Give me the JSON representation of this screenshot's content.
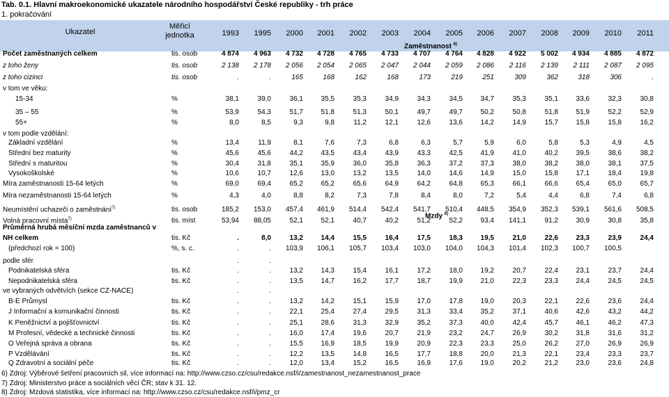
{
  "title": "Tab. 0.1. Hlavní makroekonomické ukazatele národního hospodářství České republiky - trh práce",
  "subtitle": "1. pokračování",
  "header": {
    "indicator": "Ukazatel",
    "unit_line1": "Měřicí",
    "unit_line2": "jednotka",
    "years": [
      "1993",
      "1995",
      "2000",
      "2001",
      "2002",
      "2003",
      "2004",
      "2005",
      "2006",
      "2007",
      "2008",
      "2009",
      "2010",
      "2011"
    ]
  },
  "sections": {
    "employment": "Zaměstnanost",
    "employment_note": "6)",
    "wages": "Mzdy",
    "wages_note": "8)"
  },
  "rows": [
    {
      "label": "Počet zaměstnaných celkem",
      "unit": "tis. osob",
      "style": "bold",
      "values": [
        "4 874",
        "4 963",
        "4 732",
        "4 728",
        "4 765",
        "4 733",
        "4 707",
        "4 764",
        "4 828",
        "4 922",
        "5 002",
        "4 934",
        "4 885",
        "4 872"
      ]
    },
    {
      "label": "z toho ženy",
      "unit": "tis. osob",
      "style": "ital",
      "values": [
        "2 138",
        "2 178",
        "2 056",
        "2 054",
        "2 065",
        "2 047",
        "2 044",
        "2 059",
        "2 086",
        "2 116",
        "2 139",
        "2 111",
        "2 087",
        "2 095"
      ]
    },
    {
      "label": "z toho cizinci",
      "unit": "tis. osob",
      "style": "ital",
      "values": [
        ".",
        ".",
        "165",
        "168",
        "162",
        "168",
        "173",
        "219",
        "251",
        "309",
        "362",
        "318",
        "306",
        "."
      ]
    },
    {
      "label": "v tom ve věku:",
      "unit": "",
      "style": "",
      "values": []
    },
    {
      "label": "15-34",
      "unit": "%",
      "style": "",
      "indent": 2,
      "values": [
        "38,1",
        "39,0",
        "36,1",
        "35,5",
        "35,3",
        "34,9",
        "34,3",
        "34,5",
        "34,7",
        "35,3",
        "35,1",
        "33,6",
        "32,3",
        "30,8"
      ]
    },
    {
      "label": "35 – 55",
      "unit": "%",
      "style": "",
      "indent": 2,
      "values": [
        "53,9",
        "54,3",
        "51,7",
        "51,8",
        "51,3",
        "50,1",
        "49,7",
        "49,7",
        "50,2",
        "50,8",
        "51,8",
        "51,9",
        "52,2",
        "52,9"
      ]
    },
    {
      "label": "55+",
      "unit": "%",
      "style": "",
      "indent": 2,
      "values": [
        "8,0",
        "8,5",
        "9,3",
        "9,8",
        "11,2",
        "12,1",
        "12,6",
        "13,6",
        "14,2",
        "14,9",
        "15,7",
        "15,8",
        "15,8",
        "16,2"
      ]
    },
    {
      "label": "v tom podle vzdělání:",
      "unit": "",
      "style": "",
      "values": []
    },
    {
      "label": "Základní vzdělání",
      "unit": "%",
      "style": "",
      "indent": 1,
      "values": [
        "13,4",
        "11,9",
        "8,1",
        "7,6",
        "7,3",
        "6,8",
        "6,3",
        "5,7",
        "5,9",
        "6,0",
        "5,8",
        "5,3",
        "4,9",
        "4,5"
      ]
    },
    {
      "label": "Střední bez maturity",
      "unit": "%",
      "style": "",
      "indent": 1,
      "values": [
        "45,6",
        "45,6",
        "44,2",
        "43,5",
        "43,4",
        "43,9",
        "43,3",
        "42,5",
        "41,9",
        "41,0",
        "40,2",
        "39,5",
        "38,6",
        "38,2"
      ]
    },
    {
      "label": "Střední s maturitou",
      "unit": "%",
      "style": "",
      "indent": 1,
      "values": [
        "30,4",
        "31,8",
        "35,1",
        "35,9",
        "36,0",
        "35,8",
        "36,3",
        "37,2",
        "37,3",
        "38,0",
        "38,2",
        "38,0",
        "38,1",
        "37,5"
      ]
    },
    {
      "label": "Vysokoškolské",
      "unit": "%",
      "style": "",
      "indent": 1,
      "values": [
        "10,6",
        "10,7",
        "12,6",
        "13,0",
        "13,2",
        "13,5",
        "14,0",
        "14,6",
        "14,9",
        "15,0",
        "15,8",
        "17,1",
        "18,4",
        "19,8"
      ]
    },
    {
      "label": "Míra zaměstnanosti 15-64 letých",
      "unit": "%",
      "style": "",
      "values": [
        "69,0",
        "69,4",
        "65,2",
        "65,2",
        "65,6",
        "64,9",
        "64,2",
        "64,8",
        "65,3",
        "66,1",
        "66,6",
        "65,4",
        "65,0",
        "65,7"
      ]
    },
    {
      "label": "Míra nezaměstnanosti 15-64 letých",
      "unit": "%",
      "style": "",
      "values": [
        "4,3",
        "4,0",
        "8,8",
        "8,2",
        "7,3",
        "7,8",
        "8,4",
        "8,0",
        "7,2",
        "5,4",
        "4,4",
        "6,8",
        "7,4",
        "6,8"
      ]
    },
    {
      "label": "Neumístění uchazeči o zaměstnání",
      "note": "7)",
      "unit": "tis. osob",
      "style": "",
      "values": [
        "185,2",
        "153,0",
        "457,4",
        "461,9",
        "514,4",
        "542,4",
        "541,7",
        "510,4",
        "448,5",
        "354,9",
        "352,3",
        "539,1",
        "561,6",
        "508,5"
      ]
    },
    {
      "label": "Volná pracovní místa",
      "note": "7)",
      "unit": "tis. míst",
      "style": "",
      "values": [
        "53,94",
        "88,05",
        "52,1",
        "52,1",
        "40,7",
        "40,2",
        "51,2",
        "52,2",
        "93,4",
        "141,1",
        "91,2",
        "30,9",
        "30,8",
        "35,8"
      ]
    },
    {
      "label": "Průměrná hrubá měsíční mzda zaměstnanců v",
      "unit": "",
      "style": "bold",
      "values": []
    },
    {
      "label": "NH celkem",
      "unit": "tis. Kč",
      "style": "bold",
      "values": [
        ".",
        "8,0",
        "13,2",
        "14,4",
        "15,5",
        "16,4",
        "17,5",
        "18,3",
        "19,5",
        "21,0",
        "22,6",
        "23,3",
        "23,9",
        "24,4"
      ]
    },
    {
      "label": "(předchozí rok = 100)",
      "unit": "%, s. c.",
      "style": "",
      "indent": 1,
      "values": [
        ".",
        ".",
        "103,9",
        "106,1",
        "105,7",
        "103,4",
        "103,0",
        "104,0",
        "104,3",
        "101,4",
        "102,3",
        "100,7",
        "100,5",
        ""
      ]
    },
    {
      "label": "podle sfér",
      "unit": "",
      "style": "",
      "values": [
        ".",
        "."
      ]
    },
    {
      "label": "Podnikatelská sféra",
      "unit": "tis. Kč",
      "style": "",
      "indent": 1,
      "values": [
        ".",
        ".",
        "13,2",
        "14,3",
        "15,4",
        "16,1",
        "17,2",
        "18,0",
        "19,2",
        "20,7",
        "22,4",
        "23,1",
        "23,7",
        "24,4"
      ]
    },
    {
      "label": "Nepodnikatelská sféra",
      "unit": "tis. Kč",
      "style": "",
      "indent": 1,
      "values": [
        ".",
        ".",
        "13,5",
        "14,7",
        "16,2",
        "17,7",
        "18,7",
        "19,9",
        "21,0",
        "22,3",
        "23,3",
        "24,4",
        "24,5",
        "24,5"
      ]
    },
    {
      "label": "ve vybraných odvětvích (sekce CZ-NACE)",
      "unit": "",
      "style": "",
      "values": [
        ".",
        "."
      ]
    },
    {
      "label": "B-E Průmysl",
      "unit": "tis. Kč",
      "style": "",
      "indent": 1,
      "values": [
        ".",
        ".",
        "13,2",
        "14,2",
        "15,1",
        "15,9",
        "17,0",
        "17,8",
        "19,0",
        "20,3",
        "22,1",
        "22,6",
        "23,6",
        "24,4"
      ]
    },
    {
      "label": "J Informační a komunikační činnosti",
      "unit": "tis. Kč",
      "style": "",
      "indent": 1,
      "values": [
        ".",
        ".",
        "22,1",
        "25,4",
        "27,4",
        "29,5",
        "31,3",
        "33,4",
        "35,2",
        "37,1",
        "40,6",
        "42,6",
        "43,2",
        "44,2"
      ]
    },
    {
      "label": "K Peněžnictví a pojišťovnictví",
      "unit": "tis. Kč",
      "style": "",
      "indent": 1,
      "values": [
        ".",
        ".",
        "25,1",
        "28,6",
        "31,3",
        "32,9",
        "35,2",
        "37,3",
        "40,0",
        "42,4",
        "45,7",
        "46,1",
        "46,2",
        "47,3"
      ]
    },
    {
      "label": "M Profesní, vědecké a technické činnosti",
      "unit": "tis. Kč",
      "style": "",
      "indent": 1,
      "values": [
        ".",
        ".",
        "16,0",
        "17,4",
        "19,6",
        "20,7",
        "21,9",
        "23,2",
        "24,7",
        "26,9",
        "30,2",
        "31,8",
        "31,6",
        "31,2"
      ]
    },
    {
      "label": "O Veřejná správa a obrana",
      "unit": "tis. Kč",
      "style": "",
      "indent": 1,
      "values": [
        ".",
        ".",
        "15,5",
        "16,9",
        "18,5",
        "19,9",
        "20,9",
        "22,3",
        "23,3",
        "25,0",
        "26,2",
        "27,0",
        "26,9",
        "26,9"
      ]
    },
    {
      "label": "P Vzdělávání",
      "unit": "tis. Kč",
      "style": "",
      "indent": 1,
      "values": [
        ".",
        ".",
        "12,2",
        "13,5",
        "14,8",
        "16,5",
        "17,7",
        "18,8",
        "20,0",
        "21,3",
        "22,1",
        "23,4",
        "23,3",
        "23,7"
      ]
    },
    {
      "label": "Q Zdravotní a sociální péče",
      "unit": "tis. Kč",
      "style": "",
      "indent": 1,
      "values": [
        ".",
        ".",
        "12,0",
        "13,4",
        "15,2",
        "16,5",
        "16,9",
        "17,6",
        "19,0",
        "20,2",
        "21,2",
        "23,0",
        "23,6",
        "24,8"
      ]
    }
  ],
  "footnotes": [
    "6) Zdroj: Výběrové šetření pracovních sil, více informací na: http://www.czso.cz/csu/redakce.nsf/i/zamestnanost_nezamestnanost_prace",
    "7) Zdroj: Ministerstvo práce a sociálních věcí ČR; stav k 31. 12.",
    "8) Zdroj: Mzdová statistika, více informací na: http://www.czso.cz/csu/redakce.nsf/i/pmz_cr"
  ]
}
